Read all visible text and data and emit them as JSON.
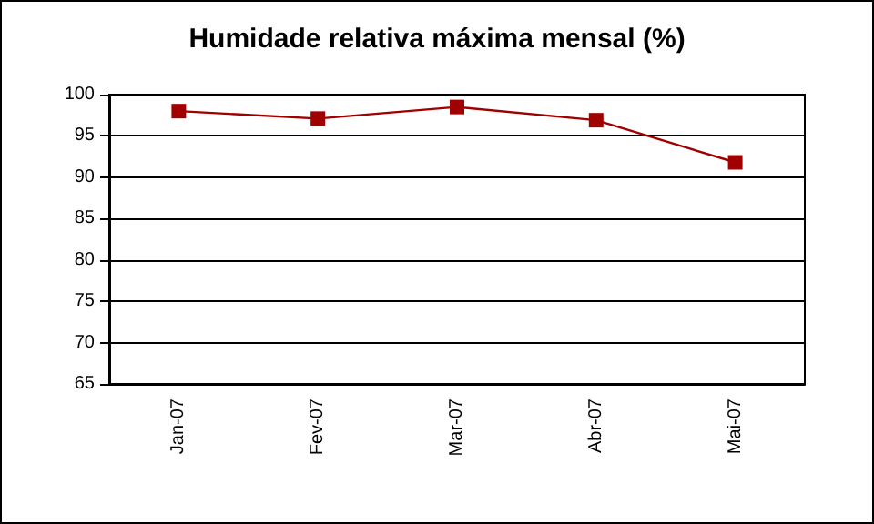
{
  "chart_data": {
    "type": "line",
    "title": "Humidade relativa máxima mensal (%)",
    "categories": [
      "Jan-07",
      "Fev-07",
      "Mar-07",
      "Abr-07",
      "Mai-07"
    ],
    "series": [
      {
        "color": "#a00000",
        "values": [
          98.0,
          97.1,
          98.5,
          96.9,
          91.8
        ]
      }
    ],
    "ylim": [
      65,
      100
    ],
    "yticks": [
      65,
      70,
      75,
      80,
      85,
      90,
      95,
      100
    ],
    "grid": "y",
    "marker": "square",
    "line_style": "solid"
  }
}
